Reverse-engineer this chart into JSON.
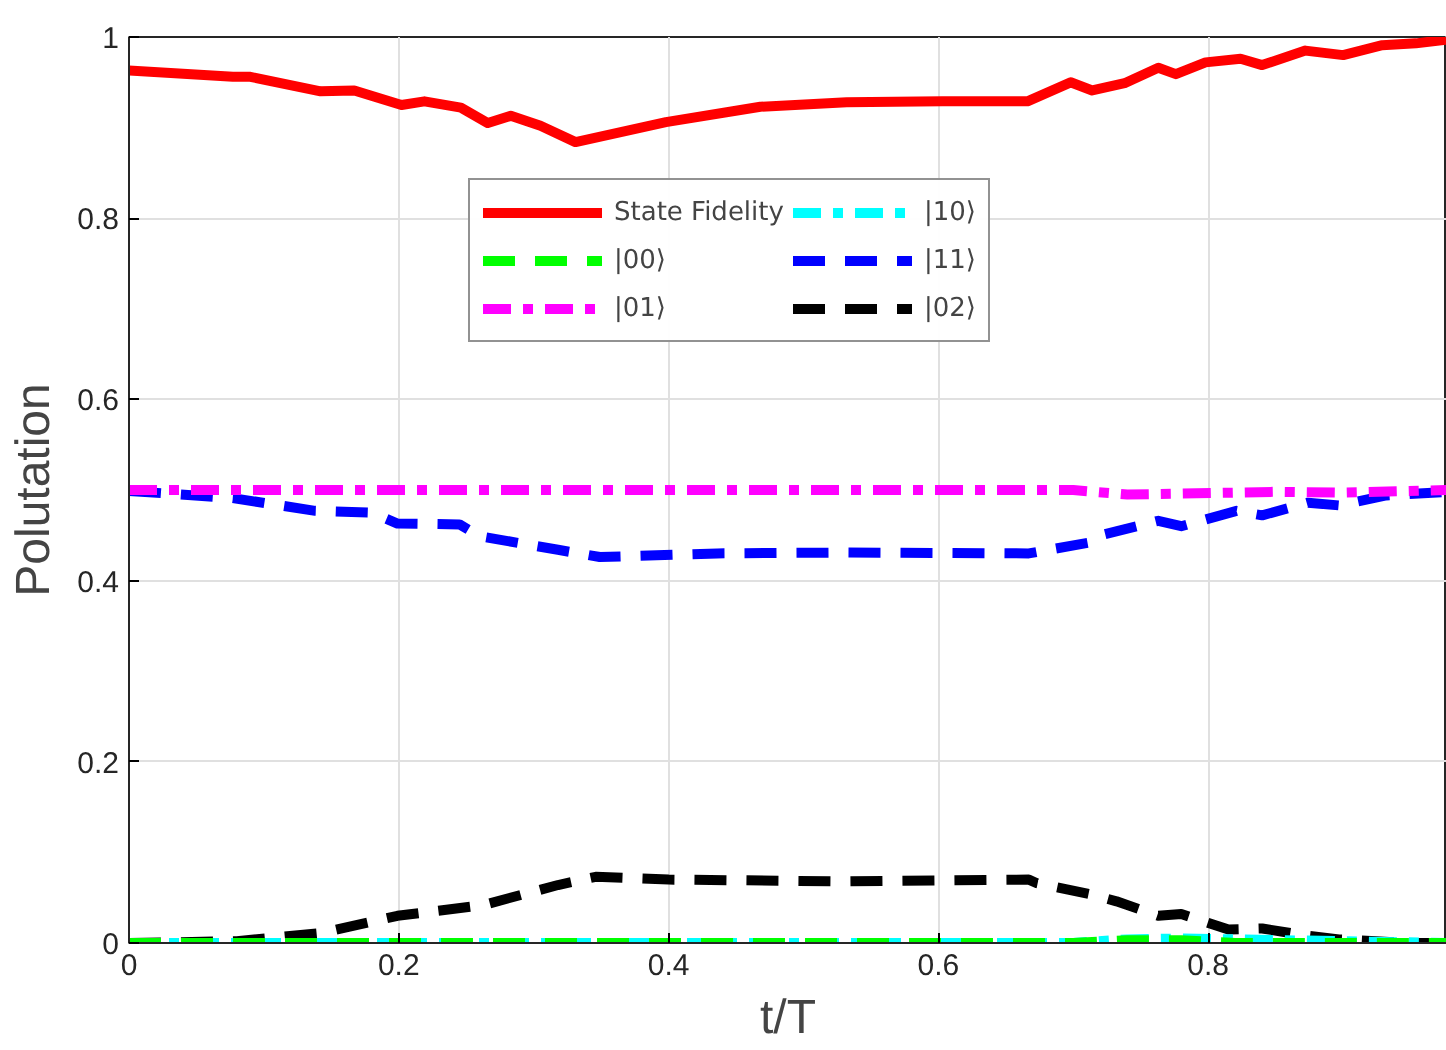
{
  "chart_data": {
    "type": "line",
    "xlabel": "t/T",
    "ylabel": "Polutation",
    "xlim": [
      0,
      0.977
    ],
    "ylim": [
      0,
      1
    ],
    "xticks": [
      0,
      0.2,
      0.4,
      0.6,
      0.8
    ],
    "yticks": [
      0,
      0.2,
      0.4,
      0.6,
      0.8,
      1
    ],
    "grid": true,
    "legend": "top",
    "marker": "none",
    "series": [
      {
        "name": "State Fidelity",
        "color": "#ff0000",
        "line_style": "solid",
        "x": [
          0,
          0.077,
          0.09,
          0.142,
          0.167,
          0.202,
          0.219,
          0.246,
          0.266,
          0.283,
          0.305,
          0.331,
          0.398,
          0.468,
          0.532,
          0.603,
          0.666,
          0.698,
          0.714,
          0.738,
          0.763,
          0.776,
          0.798,
          0.824,
          0.84,
          0.872,
          0.9,
          0.929,
          0.954,
          0.977
        ],
        "values": [
          0.963,
          0.956,
          0.956,
          0.94,
          0.941,
          0.925,
          0.929,
          0.922,
          0.905,
          0.913,
          0.902,
          0.884,
          0.906,
          0.923,
          0.928,
          0.929,
          0.929,
          0.95,
          0.941,
          0.949,
          0.966,
          0.959,
          0.972,
          0.976,
          0.969,
          0.985,
          0.98,
          0.991,
          0.993,
          0.997
        ]
      },
      {
        "name": "|00⟩",
        "color": "#00ff00",
        "line_style": "dashed",
        "x": [
          0,
          0.7,
          0.74,
          0.78,
          0.82,
          0.977
        ],
        "values": [
          0,
          0,
          0.003,
          0.003,
          0,
          0
        ]
      },
      {
        "name": "|01⟩",
        "color": "#ff00ff",
        "line_style": "dashdot",
        "x": [
          0,
          0.2,
          0.4,
          0.6,
          0.7,
          0.74,
          0.78,
          0.85,
          0.9,
          0.977
        ],
        "values": [
          0.5,
          0.5,
          0.5,
          0.5,
          0.5,
          0.495,
          0.496,
          0.498,
          0.497,
          0.5
        ]
      },
      {
        "name": "|10⟩",
        "color": "#00ffff",
        "line_style": "dashdot",
        "x": [
          0,
          0.7,
          0.74,
          0.78,
          0.82,
          0.9,
          0.977
        ],
        "values": [
          0,
          0,
          0.004,
          0.005,
          0.004,
          0.002,
          0
        ]
      },
      {
        "name": "|11⟩",
        "color": "#0000ff",
        "line_style": "dashed",
        "x": [
          0,
          0.077,
          0.138,
          0.18,
          0.199,
          0.245,
          0.26,
          0.318,
          0.349,
          0.436,
          0.532,
          0.667,
          0.712,
          0.72,
          0.763,
          0.78,
          0.821,
          0.84,
          0.874,
          0.897,
          0.932,
          0.977
        ],
        "values": [
          0.499,
          0.491,
          0.477,
          0.475,
          0.463,
          0.462,
          0.449,
          0.434,
          0.426,
          0.43,
          0.431,
          0.43,
          0.442,
          0.45,
          0.466,
          0.46,
          0.477,
          0.472,
          0.486,
          0.483,
          0.494,
          0.498
        ]
      },
      {
        "name": "|02⟩",
        "color": "#000000",
        "line_style": "dashed",
        "x": [
          0,
          0.08,
          0.142,
          0.199,
          0.263,
          0.318,
          0.346,
          0.4,
          0.532,
          0.667,
          0.673,
          0.712,
          0.732,
          0.763,
          0.78,
          0.815,
          0.84,
          0.874,
          0.897,
          0.948,
          0.977
        ],
        "values": [
          0,
          0.002,
          0.011,
          0.03,
          0.042,
          0.064,
          0.073,
          0.07,
          0.068,
          0.07,
          0.066,
          0.054,
          0.046,
          0.03,
          0.032,
          0.015,
          0.016,
          0.008,
          0.004,
          0,
          0
        ]
      }
    ]
  }
}
